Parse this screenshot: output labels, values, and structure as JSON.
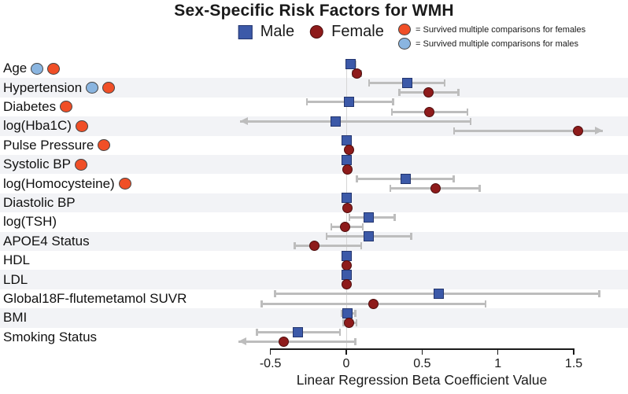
{
  "title": "Sex-Specific Risk Factors for WMH",
  "legend": {
    "male_label": "Male",
    "female_label": "Female"
  },
  "sig_legend": {
    "female_text": "= Survived multiple comparisons for females",
    "male_text": "= Survived multiple comparisons for males"
  },
  "x_axis": {
    "label": "Linear Regression Beta Coefficient Value",
    "tick_values": [
      -0.5,
      0,
      0.5,
      1,
      1.5
    ],
    "tick_labels": [
      "-0.5",
      "0",
      "0.5",
      "1",
      "1.5"
    ]
  },
  "colors": {
    "male": "#3c59a8",
    "male_border": "#23356e",
    "female": "#8e1b1b",
    "female_border": "#4e0d0d",
    "sig_female": "#f04f27",
    "sig_male": "#8ab5e0",
    "sig_border": "#444444",
    "error_bar": "#bdbdbd",
    "band": "#f2f3f6",
    "zero_line": "#d6d6d6",
    "axis": "#1a1a1a"
  },
  "chart_data": {
    "type": "scatter",
    "title": "Sex-Specific Risk Factors for WMH",
    "xlabel": "Linear Regression Beta Coefficient Value",
    "xlim": [
      -0.72,
      1.72
    ],
    "x_ticks": [
      -0.5,
      0,
      0.5,
      1,
      1.5
    ],
    "legend_entries": [
      "Male",
      "Female"
    ],
    "legend_position": "top",
    "grid": false,
    "rows": [
      {
        "label": "Age",
        "sig": [
          "male",
          "female"
        ],
        "male": {
          "value": 0.03,
          "lo": 0.0,
          "hi": 0.06
        },
        "female": {
          "value": 0.07,
          "lo": 0.04,
          "hi": 0.1
        }
      },
      {
        "label": "Hypertension",
        "sig": [
          "male",
          "female"
        ],
        "male": {
          "value": 0.4,
          "lo": 0.15,
          "hi": 0.65
        },
        "female": {
          "value": 0.54,
          "lo": 0.35,
          "hi": 0.74
        }
      },
      {
        "label": "Diabetes",
        "sig": [
          "female"
        ],
        "male": {
          "value": 0.02,
          "lo": -0.26,
          "hi": 0.31
        },
        "female": {
          "value": 0.55,
          "lo": 0.3,
          "hi": 0.8
        }
      },
      {
        "label": "log(Hba1C)",
        "sig": [
          "female"
        ],
        "male": {
          "value": -0.07,
          "lo": -0.7,
          "hi": 0.82,
          "arrow_lo": true
        },
        "female": {
          "value": 1.53,
          "lo": 0.71,
          "hi": 1.69,
          "arrow_hi": true
        }
      },
      {
        "label": "Pulse Pressure",
        "sig": [
          "female"
        ],
        "male": {
          "value": 0.0,
          "lo": -0.01,
          "hi": 0.02
        },
        "female": {
          "value": 0.02,
          "lo": 0.0,
          "hi": 0.04
        }
      },
      {
        "label": "Systolic BP",
        "sig": [
          "female"
        ],
        "male": {
          "value": 0.0,
          "lo": -0.01,
          "hi": 0.02
        },
        "female": {
          "value": 0.01,
          "lo": 0.0,
          "hi": 0.03
        }
      },
      {
        "label": "log(Homocysteine)",
        "sig": [
          "female"
        ],
        "male": {
          "value": 0.39,
          "lo": 0.07,
          "hi": 0.71
        },
        "female": {
          "value": 0.59,
          "lo": 0.29,
          "hi": 0.88
        }
      },
      {
        "label": "Diastolic BP",
        "sig": [],
        "male": {
          "value": 0.0,
          "lo": -0.02,
          "hi": 0.02
        },
        "female": {
          "value": 0.01,
          "lo": -0.01,
          "hi": 0.03
        }
      },
      {
        "label": "log(TSH)",
        "sig": [],
        "male": {
          "value": 0.15,
          "lo": 0.02,
          "hi": 0.32
        },
        "female": {
          "value": -0.01,
          "lo": -0.1,
          "hi": 0.11
        }
      },
      {
        "label": "APOE4 Status",
        "sig": [],
        "male": {
          "value": 0.15,
          "lo": -0.13,
          "hi": 0.43
        },
        "female": {
          "value": -0.21,
          "lo": -0.34,
          "hi": 0.1
        }
      },
      {
        "label": "HDL",
        "sig": [],
        "male": {
          "value": 0.0,
          "lo": -0.01,
          "hi": 0.01
        },
        "female": {
          "value": 0.0,
          "lo": -0.01,
          "hi": 0.01
        }
      },
      {
        "label": "LDL",
        "sig": [],
        "male": {
          "value": 0.0,
          "lo": -0.01,
          "hi": 0.01
        },
        "female": {
          "value": 0.0,
          "lo": -0.01,
          "hi": 0.01
        }
      },
      {
        "label": "Global18F-flutemetamol SUVR",
        "sig": [],
        "male": {
          "value": 0.61,
          "lo": -0.47,
          "hi": 1.67
        },
        "female": {
          "value": 0.18,
          "lo": -0.56,
          "hi": 0.92
        }
      },
      {
        "label": "BMI",
        "sig": [],
        "male": {
          "value": 0.01,
          "lo": -0.03,
          "hi": 0.06
        },
        "female": {
          "value": 0.02,
          "lo": -0.02,
          "hi": 0.07
        }
      },
      {
        "label": "Smoking Status",
        "sig": [],
        "male": {
          "value": -0.32,
          "lo": -0.59,
          "hi": -0.04
        },
        "female": {
          "value": -0.41,
          "lo": -0.71,
          "hi": 0.06,
          "arrow_lo": true
        }
      }
    ]
  }
}
